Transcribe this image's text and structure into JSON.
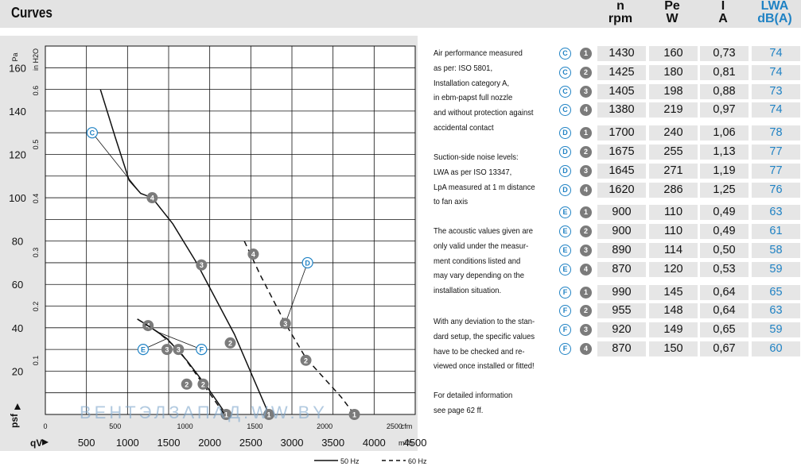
{
  "title": "Curves",
  "header_cols": [
    {
      "top": "n",
      "unit": "rpm"
    },
    {
      "top": "Pe",
      "unit": "W"
    },
    {
      "top": "I",
      "unit": "A"
    },
    {
      "top": "LWA",
      "unit": "dB(A)"
    }
  ],
  "colors": {
    "accent": "#1f82c4",
    "badge": "#7b7b7b",
    "panel": "#e5e5e5"
  },
  "chart_data": {
    "type": "line",
    "title": "",
    "xlabel_top": "cfm",
    "xlabel_bottom": "m³/h",
    "x_symbol": "qV",
    "ylabel_left": "Pa",
    "ylabel_inner": "in H2O",
    "y_symbol": "psf",
    "xlim_m3h": [
      0,
      4500
    ],
    "ylim_pa": [
      0,
      170
    ],
    "x_ticks_m3h": [
      "500",
      "1000",
      "1500",
      "2000",
      "2500",
      "3000",
      "3500",
      "4000",
      "4500"
    ],
    "x_ticks_cfm": [
      "0",
      "500",
      "1000",
      "1500",
      "2000",
      "2500"
    ],
    "y_ticks_pa": [
      "20",
      "40",
      "60",
      "80",
      "100",
      "120",
      "140",
      "160"
    ],
    "y_ticks_inh2o": [
      "0.1",
      "0.2",
      "0.3",
      "0.4",
      "0.5",
      "0.6"
    ],
    "legend": [
      {
        "style": "solid",
        "label": "50 Hz"
      },
      {
        "style": "dashed",
        "label": "60 Hz"
      }
    ],
    "series": [
      {
        "name": "C",
        "style": "solid",
        "points": [
          [
            670,
            150
          ],
          [
            850,
            128
          ],
          [
            1020,
            108
          ],
          [
            1160,
            102
          ],
          [
            1300,
            100
          ],
          [
            1550,
            88
          ],
          [
            1840,
            70
          ],
          [
            2300,
            37
          ],
          [
            2720,
            0
          ]
        ],
        "markers": [
          {
            "label": "4",
            "x": 1300,
            "y": 100
          },
          {
            "label": "3",
            "x": 1900,
            "y": 69
          },
          {
            "label": "2",
            "x": 2250,
            "y": 33
          },
          {
            "label": "1",
            "x": 2720,
            "y": 0
          }
        ],
        "tag": {
          "label": "C",
          "x": 570,
          "y": 130
        }
      },
      {
        "name": "D",
        "style": "dashed",
        "points": [
          [
            2420,
            80
          ],
          [
            2620,
            64
          ],
          [
            2920,
            42
          ],
          [
            3170,
            26
          ],
          [
            3600,
            8
          ],
          [
            3760,
            0
          ]
        ],
        "markers": [
          {
            "label": "4",
            "x": 2530,
            "y": 74
          },
          {
            "label": "3",
            "x": 2920,
            "y": 42
          },
          {
            "label": "2",
            "x": 3170,
            "y": 25
          },
          {
            "label": "1",
            "x": 3760,
            "y": 0
          }
        ],
        "tag": {
          "label": "D",
          "x": 3190,
          "y": 70
        }
      },
      {
        "name": "E",
        "style": "solid",
        "points": [
          [
            1120,
            44
          ],
          [
            1250,
            41
          ],
          [
            1480,
            35
          ],
          [
            1720,
            25
          ],
          [
            1980,
            12
          ],
          [
            2200,
            0
          ]
        ],
        "markers": [
          {
            "label": "4",
            "x": 1250,
            "y": 41
          },
          {
            "label": "3",
            "x": 1480,
            "y": 30
          },
          {
            "label": "2",
            "x": 1720,
            "y": 14
          },
          {
            "label": "1",
            "x": 2200,
            "y": 0
          }
        ],
        "tag": {
          "label": "E",
          "x": 1190,
          "y": 30
        }
      },
      {
        "name": "F",
        "style": "dashed",
        "points": [
          [
            1120,
            44
          ],
          [
            1370,
            38
          ],
          [
            1620,
            30
          ],
          [
            1920,
            14
          ],
          [
            2180,
            0
          ]
        ],
        "markers": [
          {
            "label": "3",
            "x": 1620,
            "y": 30
          },
          {
            "label": "2",
            "x": 1920,
            "y": 14
          }
        ],
        "tag": {
          "label": "F",
          "x": 1900,
          "y": 30
        }
      }
    ]
  },
  "watermark": "ВЕНТЭЛЗАПАД.WW.BY",
  "notes": [
    [
      "Air performance measured",
      "as per: ISO 5801,",
      "Installation category A,",
      "in ebm-papst full nozzle",
      "and without protection against",
      "accidental contact"
    ],
    [
      "Suction-side noise levels:",
      "LWA as per ISO 13347,",
      "LpA measured at 1 m distance",
      "to fan axis"
    ],
    [
      "The acoustic values given are",
      "only valid under the measur-",
      "ment conditions listed and",
      "may vary depending on the",
      "installation situation."
    ],
    [
      "With any deviation to the stan-",
      "dard setup, the specific values",
      "have to be checked and re-",
      "viewed once installed or fitted!"
    ],
    [
      "For detailed information",
      "see page 62 ff."
    ]
  ],
  "table": [
    {
      "tag": "C",
      "num": "1",
      "n": "1430",
      "pe": "160",
      "i": "0,73",
      "lwa": "74"
    },
    {
      "tag": "C",
      "num": "2",
      "n": "1425",
      "pe": "180",
      "i": "0,81",
      "lwa": "74"
    },
    {
      "tag": "C",
      "num": "3",
      "n": "1405",
      "pe": "198",
      "i": "0,88",
      "lwa": "73"
    },
    {
      "tag": "C",
      "num": "4",
      "n": "1380",
      "pe": "219",
      "i": "0,97",
      "lwa": "74"
    },
    {
      "tag": "D",
      "num": "1",
      "n": "1700",
      "pe": "240",
      "i": "1,06",
      "lwa": "78"
    },
    {
      "tag": "D",
      "num": "2",
      "n": "1675",
      "pe": "255",
      "i": "1,13",
      "lwa": "77"
    },
    {
      "tag": "D",
      "num": "3",
      "n": "1645",
      "pe": "271",
      "i": "1,19",
      "lwa": "77"
    },
    {
      "tag": "D",
      "num": "4",
      "n": "1620",
      "pe": "286",
      "i": "1,25",
      "lwa": "76"
    },
    {
      "tag": "E",
      "num": "1",
      "n": "900",
      "pe": "110",
      "i": "0,49",
      "lwa": "63"
    },
    {
      "tag": "E",
      "num": "2",
      "n": "900",
      "pe": "110",
      "i": "0,49",
      "lwa": "61"
    },
    {
      "tag": "E",
      "num": "3",
      "n": "890",
      "pe": "114",
      "i": "0,50",
      "lwa": "58"
    },
    {
      "tag": "E",
      "num": "4",
      "n": "870",
      "pe": "120",
      "i": "0,53",
      "lwa": "59"
    },
    {
      "tag": "F",
      "num": "1",
      "n": "990",
      "pe": "145",
      "i": "0,64",
      "lwa": "65"
    },
    {
      "tag": "F",
      "num": "2",
      "n": "955",
      "pe": "148",
      "i": "0,64",
      "lwa": "63"
    },
    {
      "tag": "F",
      "num": "3",
      "n": "920",
      "pe": "149",
      "i": "0,65",
      "lwa": "59"
    },
    {
      "tag": "F",
      "num": "4",
      "n": "870",
      "pe": "150",
      "i": "0,67",
      "lwa": "60"
    }
  ]
}
